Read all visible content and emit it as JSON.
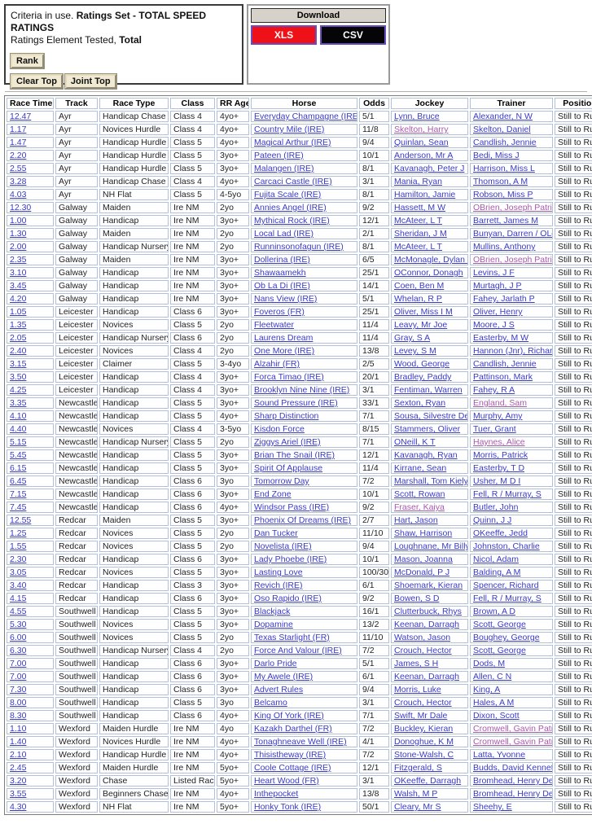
{
  "colors": {
    "link": "#3a3ac8",
    "visited": "#a85aa8",
    "xls_bg": "#ee1118",
    "csv_bg": "#050508",
    "download_button_border": "#6a4bc0",
    "cell_border": "#b2c0d8"
  },
  "criteria": {
    "line1_prefix": "Criteria in use. ",
    "line1_bold": "Ratings Set - TOTAL SPEED RATINGS",
    "line2_prefix": "Ratings Element Tested, ",
    "line2_bold": "Total",
    "rank_button": "Rank",
    "clear_top_button": "Clear Top",
    "joint_top_button": "Joint Top"
  },
  "download": {
    "title": "Download",
    "xls_label": "XLS",
    "csv_label": "CSV"
  },
  "table": {
    "columns": [
      "Race Time",
      "Track",
      "Race Type",
      "Class",
      "RR Age",
      "Horse",
      "Odds",
      "Jockey",
      "Trainer",
      "Position"
    ],
    "rows": [
      {
        "time": "12.47",
        "track": "Ayr",
        "type": "Handicap Chase",
        "cls": "Class 4",
        "age": "4yo+",
        "horse": "Everyday Champagne (IRE)",
        "odds": "5/1",
        "jockey": "Lynn, Bruce",
        "trainer": "Alexander, N W",
        "pos": "Still to Run"
      },
      {
        "time": "1.17",
        "track": "Ayr",
        "type": "Novices Hurdle",
        "cls": "Class 4",
        "age": "4yo+",
        "horse": "Country Mile (IRE)",
        "odds": "11/8",
        "jockey": "Skelton, Harry",
        "trainer": "Skelton, Daniel",
        "pos": "Still to Run",
        "jv": true
      },
      {
        "time": "1.47",
        "track": "Ayr",
        "type": "Handicap Hurdle",
        "cls": "Class 5",
        "age": "4yo+",
        "horse": "Magical Arthur (IRE)",
        "odds": "9/4",
        "jockey": "Quinlan, Sean",
        "trainer": "Candlish, Jennie",
        "pos": "Still to Run"
      },
      {
        "time": "2.20",
        "track": "Ayr",
        "type": "Handicap Hurdle",
        "cls": "Class 5",
        "age": "3yo+",
        "horse": "Pateen (IRE)",
        "odds": "10/1",
        "jockey": "Anderson, Mr A",
        "trainer": "Bedi, Miss J",
        "pos": "Still to Run"
      },
      {
        "time": "2.55",
        "track": "Ayr",
        "type": "Handicap Hurdle",
        "cls": "Class 5",
        "age": "3yo+",
        "horse": "Malangen (IRE)",
        "odds": "8/1",
        "jockey": "Kavanagh, Peter J",
        "trainer": "Harrison, Miss L",
        "pos": "Still to Run"
      },
      {
        "time": "3.28",
        "track": "Ayr",
        "type": "Handicap Chase",
        "cls": "Class 4",
        "age": "4yo+",
        "horse": "Carcaci Castle (IRE)",
        "odds": "3/1",
        "jockey": "Mania, Ryan",
        "trainer": "Thomson, A M",
        "pos": "Still to Run"
      },
      {
        "time": "4.03",
        "track": "Ayr",
        "type": "NH Flat",
        "cls": "Class 5",
        "age": "4-5yo",
        "horse": "Fujita Scale (IRE)",
        "odds": "8/1",
        "jockey": "Hamilton, Jamie",
        "trainer": "Robson, Miss P",
        "pos": "Still to Run"
      },
      {
        "time": "12.30",
        "track": "Galway",
        "type": "Maiden",
        "cls": "Ire NM",
        "age": "2yo",
        "horse": "Annies Angel (IRE)",
        "odds": "9/2",
        "jockey": "Hassett, M W",
        "trainer": "OBrien, Joseph Patrick",
        "pos": "Still to Run",
        "tv": true
      },
      {
        "time": "1.00",
        "track": "Galway",
        "type": "Handicap",
        "cls": "Ire NM",
        "age": "3yo+",
        "horse": "Mythical Rock (IRE)",
        "odds": "12/1",
        "jockey": "McAteer, L T",
        "trainer": "Barrett, James M",
        "pos": "Still to Run"
      },
      {
        "time": "1.30",
        "track": "Galway",
        "type": "Maiden",
        "cls": "Ire NM",
        "age": "2yo",
        "horse": "Local Lad (IRE)",
        "odds": "2/1",
        "jockey": "Sheridan, J M",
        "trainer": "Bunyan, Darren / OLeary, G",
        "pos": "Still to Run"
      },
      {
        "time": "2.00",
        "track": "Galway",
        "type": "Handicap Nursery",
        "cls": "Ire NM",
        "age": "2yo",
        "horse": "Runninsonofagun (IRE)",
        "odds": "8/1",
        "jockey": "McAteer, L T",
        "trainer": "Mullins, Anthony",
        "pos": "Still to Run"
      },
      {
        "time": "2.35",
        "track": "Galway",
        "type": "Maiden",
        "cls": "Ire NM",
        "age": "3yo+",
        "horse": "Dollerina (IRE)",
        "odds": "6/5",
        "jockey": "McMonagle, Dylan B",
        "trainer": "OBrien, Joseph Patrick",
        "pos": "Still to Run",
        "tv": true
      },
      {
        "time": "3.10",
        "track": "Galway",
        "type": "Handicap",
        "cls": "Ire NM",
        "age": "3yo+",
        "horse": "Shawaamekh",
        "odds": "25/1",
        "jockey": "OConnor, Donagh",
        "trainer": "Levins, J F",
        "pos": "Still to Run"
      },
      {
        "time": "3.45",
        "track": "Galway",
        "type": "Handicap",
        "cls": "Ire NM",
        "age": "3yo+",
        "horse": "Ob La Di (IRE)",
        "odds": "14/1",
        "jockey": "Coen, Ben M",
        "trainer": "Murtagh, J P",
        "pos": "Still to Run"
      },
      {
        "time": "4.20",
        "track": "Galway",
        "type": "Handicap",
        "cls": "Ire NM",
        "age": "3yo+",
        "horse": "Nans View (IRE)",
        "odds": "5/1",
        "jockey": "Whelan, R P",
        "trainer": "Fahey, Jarlath P",
        "pos": "Still to Run"
      },
      {
        "time": "1.05",
        "track": "Leicester",
        "type": "Handicap",
        "cls": "Class 6",
        "age": "3yo+",
        "horse": "Foveros (FR)",
        "odds": "25/1",
        "jockey": "Oliver, Miss I M",
        "trainer": "Oliver, Henry",
        "pos": "Still to Run"
      },
      {
        "time": "1.35",
        "track": "Leicester",
        "type": "Novices",
        "cls": "Class 5",
        "age": "2yo",
        "horse": "Fleetwater",
        "odds": "11/4",
        "jockey": "Leavy, Mr Joe",
        "trainer": "Moore, J S",
        "pos": "Still to Run"
      },
      {
        "time": "2.05",
        "track": "Leicester",
        "type": "Handicap Nursery",
        "cls": "Class 6",
        "age": "2yo",
        "horse": "Laurens Dream",
        "odds": "11/4",
        "jockey": "Gray, S A",
        "trainer": "Easterby, M W",
        "pos": "Still to Run"
      },
      {
        "time": "2.40",
        "track": "Leicester",
        "type": "Novices",
        "cls": "Class 4",
        "age": "2yo",
        "horse": "One More (IRE)",
        "odds": "13/8",
        "jockey": "Levey, S M",
        "trainer": "Hannon (Jnr), Richard",
        "pos": "Still to Run"
      },
      {
        "time": "3.15",
        "track": "Leicester",
        "type": "Claimer",
        "cls": "Class 5",
        "age": "3-4yo",
        "horse": "Alzahir (FR)",
        "odds": "2/5",
        "jockey": "Wood, George",
        "trainer": "Candlish, Jennie",
        "pos": "Still to Run"
      },
      {
        "time": "3.50",
        "track": "Leicester",
        "type": "Handicap",
        "cls": "Class 4",
        "age": "3yo+",
        "horse": "Forca Timao (IRE)",
        "odds": "20/1",
        "jockey": "Bradley, Paddy",
        "trainer": "Pattinson, Mark",
        "pos": "Still to Run"
      },
      {
        "time": "4.25",
        "track": "Leicester",
        "type": "Handicap",
        "cls": "Class 4",
        "age": "3yo+",
        "horse": "Brooklyn Nine Nine (IRE)",
        "odds": "3/1",
        "jockey": "Fentiman, Warren",
        "trainer": "Fahey, R A",
        "pos": "Still to Run"
      },
      {
        "time": "3.35",
        "track": "Newcastle",
        "type": "Handicap",
        "cls": "Class 5",
        "age": "3yo+",
        "horse": "Sound Pressure (IRE)",
        "odds": "33/1",
        "jockey": "Sexton, Ryan",
        "trainer": "England, Sam",
        "pos": "Still to Run",
        "tv": true
      },
      {
        "time": "4.10",
        "track": "Newcastle",
        "type": "Handicap",
        "cls": "Class 5",
        "age": "4yo+",
        "horse": "Sharp Distinction",
        "odds": "7/1",
        "jockey": "Sousa, Silvestre De",
        "trainer": "Murphy, Amy",
        "pos": "Still to Run"
      },
      {
        "time": "4.40",
        "track": "Newcastle",
        "type": "Novices",
        "cls": "Class 4",
        "age": "3-5yo",
        "horse": "Kisdon Force",
        "odds": "8/15",
        "jockey": "Stammers, Oliver",
        "trainer": "Tuer, Grant",
        "pos": "Still to Run"
      },
      {
        "time": "5.15",
        "track": "Newcastle",
        "type": "Handicap Nursery",
        "cls": "Class 5",
        "age": "2yo",
        "horse": "Ziggys Ariel (IRE)",
        "odds": "7/1",
        "jockey": "ONeill, K T",
        "trainer": "Haynes, Alice",
        "pos": "Still to Run",
        "tv": true
      },
      {
        "time": "5.45",
        "track": "Newcastle",
        "type": "Handicap",
        "cls": "Class 5",
        "age": "3yo+",
        "horse": "Brian The Snail (IRE)",
        "odds": "12/1",
        "jockey": "Kavanagh, Ryan",
        "trainer": "Morris, Patrick",
        "pos": "Still to Run"
      },
      {
        "time": "6.15",
        "track": "Newcastle",
        "type": "Handicap",
        "cls": "Class 5",
        "age": "3yo+",
        "horse": "Spirit Of Applause",
        "odds": "11/4",
        "jockey": "Kirrane, Sean",
        "trainer": "Easterby, T D",
        "pos": "Still to Run"
      },
      {
        "time": "6.45",
        "track": "Newcastle",
        "type": "Handicap",
        "cls": "Class 6",
        "age": "3yo",
        "horse": "Tomorrow Day",
        "odds": "7/2",
        "jockey": "Marshall, Tom Kiely",
        "trainer": "Usher, M D I",
        "pos": "Still to Run"
      },
      {
        "time": "7.15",
        "track": "Newcastle",
        "type": "Handicap",
        "cls": "Class 6",
        "age": "3yo+",
        "horse": "End Zone",
        "odds": "10/1",
        "jockey": "Scott, Rowan",
        "trainer": "Fell, R / Murray, S",
        "pos": "Still to Run"
      },
      {
        "time": "7.45",
        "track": "Newcastle",
        "type": "Handicap",
        "cls": "Class 6",
        "age": "4yo+",
        "horse": "Windsor Pass (IRE)",
        "odds": "9/2",
        "jockey": "Fraser, Kaiya",
        "trainer": "Butler, John",
        "pos": "Still to Run",
        "jv": true
      },
      {
        "time": "12.55",
        "track": "Redcar",
        "type": "Maiden",
        "cls": "Class 5",
        "age": "3yo+",
        "horse": "Phoenix Of Dreams (IRE)",
        "odds": "2/7",
        "jockey": "Hart, Jason",
        "trainer": "Quinn, J J",
        "pos": "Still to Run"
      },
      {
        "time": "1.25",
        "track": "Redcar",
        "type": "Novices",
        "cls": "Class 5",
        "age": "2yo",
        "horse": "Dan Tucker",
        "odds": "11/10",
        "jockey": "Shaw, Harrison",
        "trainer": "OKeeffe, Jedd",
        "pos": "Still to Run"
      },
      {
        "time": "1.55",
        "track": "Redcar",
        "type": "Novices",
        "cls": "Class 5",
        "age": "2yo",
        "horse": "Novelista (IRE)",
        "odds": "9/4",
        "jockey": "Loughnane, Mr Billy",
        "trainer": "Johnston, Charlie",
        "pos": "Still to Run"
      },
      {
        "time": "2.30",
        "track": "Redcar",
        "type": "Handicap",
        "cls": "Class 6",
        "age": "3yo+",
        "horse": "Lady Phoebe (IRE)",
        "odds": "10/1",
        "jockey": "Mason, Joanna",
        "trainer": "Nicol, Adam",
        "pos": "Still to Run"
      },
      {
        "time": "3.05",
        "track": "Redcar",
        "type": "Novices",
        "cls": "Class 5",
        "age": "3yo+",
        "horse": "Lasting Love",
        "odds": "100/30",
        "jockey": "McDonald, P J",
        "trainer": "Balding, A M",
        "pos": "Still to Run"
      },
      {
        "time": "3.40",
        "track": "Redcar",
        "type": "Handicap",
        "cls": "Class 3",
        "age": "3yo+",
        "horse": "Revich (IRE)",
        "odds": "6/1",
        "jockey": "Shoemark, Kieran",
        "trainer": "Spencer, Richard",
        "pos": "Still to Run"
      },
      {
        "time": "4.15",
        "track": "Redcar",
        "type": "Handicap",
        "cls": "Class 6",
        "age": "3yo+",
        "horse": "Oso Rapido (IRE)",
        "odds": "9/2",
        "jockey": "Bowen, S D",
        "trainer": "Fell, R / Murray, S",
        "pos": "Still to Run"
      },
      {
        "time": "4.55",
        "track": "Southwell",
        "type": "Handicap",
        "cls": "Class 5",
        "age": "3yo+",
        "horse": "Blackjack",
        "odds": "16/1",
        "jockey": "Clutterbuck, Rhys",
        "trainer": "Brown, A D",
        "pos": "Still to Run"
      },
      {
        "time": "5.30",
        "track": "Southwell",
        "type": "Novices",
        "cls": "Class 5",
        "age": "3yo+",
        "horse": "Dopamine",
        "odds": "13/2",
        "jockey": "Keenan, Darragh",
        "trainer": "Scott, George",
        "pos": "Still to Run"
      },
      {
        "time": "6.00",
        "track": "Southwell",
        "type": "Novices",
        "cls": "Class 5",
        "age": "2yo",
        "horse": "Texas Starlight (FR)",
        "odds": "11/10",
        "jockey": "Watson, Jason",
        "trainer": "Boughey, George",
        "pos": "Still to Run"
      },
      {
        "time": "6.30",
        "track": "Southwell",
        "type": "Handicap Nursery",
        "cls": "Class 4",
        "age": "2yo",
        "horse": "Force And Valour (IRE)",
        "odds": "7/2",
        "jockey": "Crouch, Hector",
        "trainer": "Scott, George",
        "pos": "Still to Run"
      },
      {
        "time": "7.00",
        "track": "Southwell",
        "type": "Handicap",
        "cls": "Class 6",
        "age": "3yo+",
        "horse": "Darlo Pride",
        "odds": "5/1",
        "jockey": "James, S H",
        "trainer": "Dods, M",
        "pos": "Still to Run"
      },
      {
        "time": "7.00",
        "track": "Southwell",
        "type": "Handicap",
        "cls": "Class 6",
        "age": "3yo+",
        "horse": "My Awele (IRE)",
        "odds": "6/1",
        "jockey": "Keenan, Darragh",
        "trainer": "Allen, C N",
        "pos": "Still to Run"
      },
      {
        "time": "7.30",
        "track": "Southwell",
        "type": "Handicap",
        "cls": "Class 6",
        "age": "3yo+",
        "horse": "Advert Rules",
        "odds": "9/4",
        "jockey": "Morris, Luke",
        "trainer": "King, A",
        "pos": "Still to Run"
      },
      {
        "time": "8.00",
        "track": "Southwell",
        "type": "Handicap",
        "cls": "Class 5",
        "age": "3yo",
        "horse": "Belcamo",
        "odds": "3/1",
        "jockey": "Crouch, Hector",
        "trainer": "Hales, A M",
        "pos": "Still to Run"
      },
      {
        "time": "8.30",
        "track": "Southwell",
        "type": "Handicap",
        "cls": "Class 6",
        "age": "4yo+",
        "horse": "King Of York (IRE)",
        "odds": "7/1",
        "jockey": "Swift, Mr Dale",
        "trainer": "Dixon, Scott",
        "pos": "Still to Run"
      },
      {
        "time": "1.10",
        "track": "Wexford",
        "type": "Maiden Hurdle",
        "cls": "Ire NM",
        "age": "4yo",
        "horse": "Kazakh Darthel (FR)",
        "odds": "7/2",
        "jockey": "Buckley, Kieran",
        "trainer": "Cromwell, Gavin Patrick",
        "pos": "Still to Run",
        "tv": true
      },
      {
        "time": "1.40",
        "track": "Wexford",
        "type": "Novices Hurdle",
        "cls": "Ire NM",
        "age": "4yo+",
        "horse": "Tonaghneave Well (IRE)",
        "odds": "4/1",
        "jockey": "Donoghue, K M",
        "trainer": "Cromwell, Gavin Patrick",
        "pos": "Still to Run",
        "tv": true
      },
      {
        "time": "2.10",
        "track": "Wexford",
        "type": "Handicap Hurdle",
        "cls": "Ire NM",
        "age": "4yo+",
        "horse": "Thisistheway (IRE)",
        "odds": "7/2",
        "jockey": "Stone-Walsh, C",
        "trainer": "Latta, Yvonne",
        "pos": "Still to Run"
      },
      {
        "time": "2.45",
        "track": "Wexford",
        "type": "Maiden Hurdle",
        "cls": "Ire NM",
        "age": "5yo+",
        "horse": "Coole Cottage (IRE)",
        "odds": "12/1",
        "jockey": "Fitzgerald, S",
        "trainer": "Budds, David Kenneth",
        "pos": "Still to Run"
      },
      {
        "time": "3.20",
        "track": "Wexford",
        "type": "Chase",
        "cls": "Listed Race",
        "age": "5yo+",
        "horse": "Heart Wood (FR)",
        "odds": "3/1",
        "jockey": "OKeeffe, Darragh",
        "trainer": "Bromhead, Henry De",
        "pos": "Still to Run"
      },
      {
        "time": "3.55",
        "track": "Wexford",
        "type": "Beginners Chase",
        "cls": "Ire NM",
        "age": "4yo+",
        "horse": "Inthepocket",
        "odds": "13/8",
        "jockey": "Walsh, M P",
        "trainer": "Bromhead, Henry De",
        "pos": "Still to Run"
      },
      {
        "time": "4.30",
        "track": "Wexford",
        "type": "NH Flat",
        "cls": "Ire NM",
        "age": "5yo+",
        "horse": "Honky Tonk (IRE)",
        "odds": "50/1",
        "jockey": "Cleary, Mr S",
        "trainer": "Sheehy, E",
        "pos": "Still to Run"
      }
    ]
  }
}
